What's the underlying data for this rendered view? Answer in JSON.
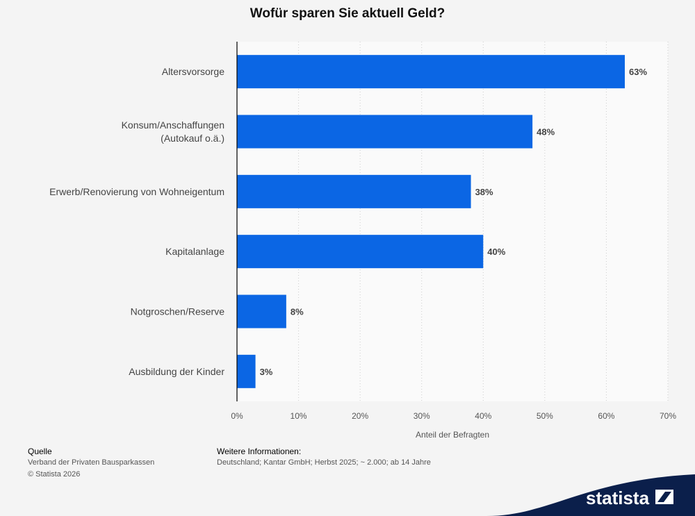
{
  "title": "Wofür sparen Sie aktuell Geld?",
  "chart_data": {
    "type": "bar",
    "orientation": "horizontal",
    "categories": [
      [
        "Altersvorsorge"
      ],
      [
        "Konsum/Anschaffungen",
        "(Autokauf o.ä.)"
      ],
      [
        "Erwerb/Renovierung von Wohneigentum"
      ],
      [
        "Kapitalanlage"
      ],
      [
        "Notgroschen/Reserve"
      ],
      [
        "Ausbildung der Kinder"
      ]
    ],
    "values": [
      63,
      48,
      38,
      40,
      8,
      3
    ],
    "value_labels": [
      "63%",
      "48%",
      "38%",
      "40%",
      "8%",
      "3%"
    ],
    "xlim": [
      0,
      70
    ],
    "xticks": [
      0,
      10,
      20,
      30,
      40,
      50,
      60,
      70
    ],
    "xtick_labels": [
      "0%",
      "10%",
      "20%",
      "30%",
      "40%",
      "50%",
      "60%",
      "70%"
    ],
    "xlabel": "Anteil der Befragten",
    "ylabel": "",
    "grid": "vertical dotted",
    "bar_color": "#0b66e4"
  },
  "footer": {
    "source_heading": "Quelle",
    "source_text": "Verband der Privaten Bausparkassen",
    "copyright": "© Statista 2026",
    "info_heading": "Weitere Informationen:",
    "info_text": "Deutschland; Kantar GmbH; Herbst 2025; ~ 2.000; ab 14 Jahre"
  },
  "brand": {
    "name": "statista",
    "icon": "statista-logo-icon",
    "color": "#0b1f4b"
  }
}
